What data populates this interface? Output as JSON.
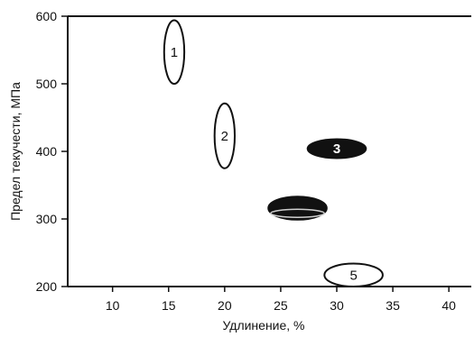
{
  "chart_data": {
    "type": "scatter",
    "xlabel": "Удлинение, %",
    "ylabel": "Предел текучести, МПа",
    "xlim": [
      6,
      42
    ],
    "ylim": [
      200,
      600
    ],
    "x_ticks": [
      10,
      15,
      20,
      25,
      30,
      35,
      40
    ],
    "y_ticks": [
      200,
      300,
      400,
      500,
      600
    ],
    "grid": false,
    "regions": [
      {
        "label": "1",
        "x_center": 15.5,
        "y_center": 547,
        "x_half_width": 0.9,
        "y_half_height": 47,
        "filled": false
      },
      {
        "label": "2",
        "x_center": 20,
        "y_center": 423,
        "x_half_width": 0.9,
        "y_half_height": 48,
        "filled": false
      },
      {
        "label": "3",
        "x_center": 30,
        "y_center": 404,
        "x_half_width": 2.6,
        "y_half_height": 14,
        "filled": true
      },
      {
        "label": "",
        "x_center": 26.5,
        "y_center": 316,
        "x_half_width": 2.6,
        "y_half_height": 17,
        "filled": true
      },
      {
        "label": "5",
        "x_center": 31.5,
        "y_center": 217,
        "x_half_width": 2.6,
        "y_half_height": 17,
        "filled": false
      }
    ],
    "colors": {
      "axis": "#111111",
      "fill": "#111111",
      "outline": "#111111",
      "filled_label": "#ffffff"
    }
  }
}
